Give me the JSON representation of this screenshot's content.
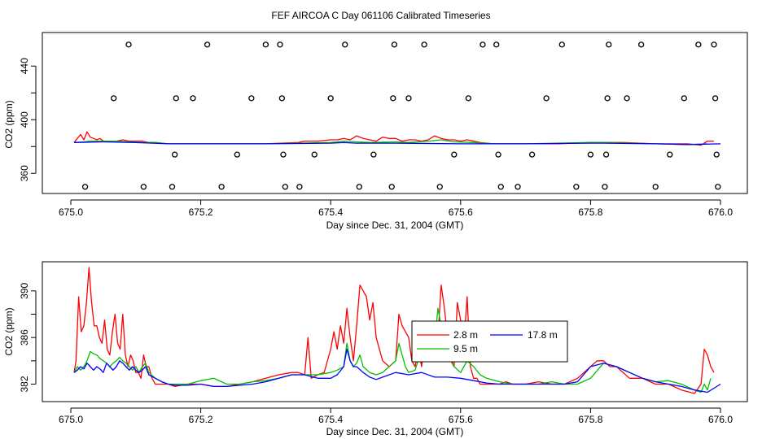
{
  "figure": {
    "title": "FEF AIRCOA C  Day 061106  Calibrated Timeseries"
  },
  "chart_data": [
    {
      "type": "scatter+line",
      "title": "",
      "xlabel": "Day since Dec. 31, 2004 (GMT)",
      "ylabel": "CO2 (ppm)",
      "xlim": [
        675.0,
        676.0
      ],
      "ylim": [
        345,
        465
      ],
      "x_ticks": [
        "675.0",
        "675.2",
        "675.4",
        "675.6",
        "675.8",
        "676.0"
      ],
      "x_tick_values": [
        675.0,
        675.2,
        675.4,
        675.6,
        675.8,
        676.0
      ],
      "y_ticks": [
        "360",
        "400",
        "440"
      ],
      "y_tick_values": [
        360,
        400,
        440
      ],
      "grid": false,
      "reference_points": {
        "x": [
          675.022,
          675.066,
          675.089,
          675.112,
          675.156,
          675.16,
          675.162,
          675.188,
          675.21,
          675.232,
          675.256,
          675.278,
          675.3,
          675.322,
          675.325,
          675.327,
          675.33,
          675.352,
          675.375,
          675.4,
          675.422,
          675.444,
          675.466,
          675.494,
          675.496,
          675.498,
          675.52,
          675.544,
          675.568,
          675.59,
          675.612,
          675.634,
          675.655,
          675.658,
          675.662,
          675.688,
          675.71,
          675.732,
          675.756,
          675.778,
          675.8,
          675.822,
          675.824,
          675.826,
          675.828,
          675.856,
          675.878,
          675.9,
          675.922,
          675.944,
          675.966,
          675.99,
          675.992,
          675.994,
          675.996
        ],
        "y": [
          350,
          416,
          456,
          350,
          350,
          374,
          416,
          416,
          456,
          350,
          374,
          416,
          456,
          456,
          416,
          374,
          350,
          350,
          374,
          416,
          456,
          350,
          374,
          350,
          416,
          456,
          416,
          456,
          350,
          374,
          416,
          456,
          456,
          374,
          350,
          350,
          374,
          416,
          456,
          350,
          374,
          350,
          374,
          416,
          456,
          416,
          456,
          350,
          374,
          416,
          456,
          456,
          416,
          374,
          350
        ]
      },
      "series": [
        {
          "name": "",
          "color": "#ff0000",
          "x": [
            675.005,
            675.01,
            675.015,
            675.02,
            675.025,
            675.03,
            675.035,
            675.04,
            675.045,
            675.05,
            675.06,
            675.07,
            675.08,
            675.09,
            675.1,
            675.11,
            675.12,
            675.13,
            675.15,
            675.2,
            675.25,
            675.3,
            675.35,
            675.36,
            675.38,
            675.4,
            675.41,
            675.42,
            675.43,
            675.44,
            675.45,
            675.46,
            675.47,
            675.48,
            675.49,
            675.5,
            675.51,
            675.52,
            675.53,
            675.54,
            675.55,
            675.56,
            675.57,
            675.58,
            675.59,
            675.6,
            675.61,
            675.62,
            675.63,
            675.65,
            675.7,
            675.75,
            675.8,
            675.82,
            675.85,
            675.9,
            675.95,
            675.97,
            675.98,
            675.99
          ],
          "y": [
            383,
            386,
            389,
            385,
            391,
            387,
            386,
            385,
            386,
            384,
            384,
            384,
            385,
            384,
            384,
            384,
            383,
            383,
            382,
            382,
            382,
            382,
            383,
            384,
            384,
            385,
            385,
            386,
            385,
            388,
            386,
            385,
            384,
            387,
            386,
            386,
            384,
            385,
            385,
            384,
            385,
            388,
            386,
            385,
            385,
            384,
            385,
            384,
            383,
            382,
            382,
            382,
            383,
            383,
            383,
            382,
            382,
            381,
            384,
            384
          ]
        },
        {
          "name": "",
          "color": "#00c000",
          "x": [
            675.005,
            675.02,
            675.03,
            675.04,
            675.05,
            675.07,
            675.09,
            675.11,
            675.13,
            675.15,
            675.2,
            675.3,
            675.35,
            675.4,
            675.42,
            675.44,
            675.46,
            675.5,
            675.52,
            675.55,
            675.57,
            675.59,
            675.62,
            675.65,
            675.7,
            675.8,
            675.82,
            675.9,
            675.95,
            675.98
          ],
          "y": [
            383,
            383.5,
            384,
            384,
            384,
            384,
            383.5,
            383,
            383,
            382,
            382,
            382,
            382.5,
            383,
            384,
            383.5,
            383,
            383.5,
            383,
            384,
            385,
            383.5,
            383,
            382,
            382,
            383,
            383,
            382,
            381.5,
            382
          ]
        },
        {
          "name": "",
          "color": "#0000ff",
          "x": [
            675.005,
            675.05,
            675.1,
            675.15,
            675.2,
            675.3,
            675.4,
            675.42,
            675.44,
            675.5,
            675.6,
            675.7,
            675.8,
            675.82,
            675.9,
            675.95,
            676.0
          ],
          "y": [
            383,
            383.5,
            383,
            382,
            382,
            382,
            382.5,
            383,
            382.5,
            382.5,
            382,
            382,
            382.5,
            382.5,
            382,
            381.5,
            382
          ]
        }
      ]
    },
    {
      "type": "line",
      "title": "",
      "xlabel": "Day since Dec. 31, 2004 (GMT)",
      "ylabel": "CO2 (ppm)",
      "xlim": [
        675.0,
        676.0
      ],
      "ylim": [
        380.5,
        392.5
      ],
      "x_ticks": [
        "675.0",
        "675.2",
        "675.4",
        "675.6",
        "675.8",
        "676.0"
      ],
      "x_tick_values": [
        675.0,
        675.2,
        675.4,
        675.6,
        675.8,
        676.0
      ],
      "y_ticks": [
        "382",
        "386",
        "390"
      ],
      "y_tick_values": [
        382,
        386,
        390
      ],
      "grid": false,
      "legend": {
        "placement": "center",
        "entries": [
          "2.8 m",
          "9.5 m",
          "17.8 m"
        ]
      },
      "series": [
        {
          "name": "2.8 m",
          "color": "#ff0000",
          "x": [
            675.005,
            675.008,
            675.012,
            675.016,
            675.02,
            675.024,
            675.028,
            675.032,
            675.036,
            675.04,
            675.044,
            675.048,
            675.052,
            675.056,
            675.06,
            675.064,
            675.068,
            675.072,
            675.076,
            675.08,
            675.084,
            675.088,
            675.092,
            675.096,
            675.1,
            675.104,
            675.108,
            675.112,
            675.116,
            675.12,
            675.125,
            675.13,
            675.14,
            675.15,
            675.16,
            675.18,
            675.2,
            675.22,
            675.24,
            675.26,
            675.28,
            675.3,
            675.32,
            675.34,
            675.35,
            675.36,
            675.365,
            675.37,
            675.38,
            675.39,
            675.4,
            675.405,
            675.41,
            675.415,
            675.42,
            675.425,
            675.43,
            675.435,
            675.44,
            675.445,
            675.45,
            675.455,
            675.46,
            675.465,
            675.47,
            675.48,
            675.49,
            675.5,
            675.505,
            675.51,
            675.515,
            675.52,
            675.525,
            675.53,
            675.535,
            675.54,
            675.545,
            675.55,
            675.555,
            675.56,
            675.565,
            675.57,
            675.575,
            675.58,
            675.585,
            675.59,
            675.595,
            675.6,
            675.605,
            675.61,
            675.615,
            675.62,
            675.625,
            675.63,
            675.64,
            675.65,
            675.66,
            675.67,
            675.68,
            675.69,
            675.7,
            675.72,
            675.74,
            675.76,
            675.78,
            675.8,
            675.81,
            675.82,
            675.83,
            675.84,
            675.86,
            675.88,
            675.9,
            675.92,
            675.94,
            675.96,
            675.97,
            675.975,
            675.98,
            675.985,
            675.99
          ],
          "y": [
            383,
            384,
            389.5,
            386.5,
            387,
            389,
            392,
            389,
            387,
            387,
            386,
            385.5,
            387.5,
            385,
            384.5,
            386.5,
            388,
            385.5,
            385,
            388,
            384.5,
            383.5,
            384.5,
            384,
            383,
            383,
            382.5,
            384.5,
            383.5,
            383.5,
            382.5,
            382,
            382,
            382,
            381.8,
            382,
            382,
            381.8,
            381.8,
            382,
            382.2,
            382.5,
            382.8,
            383,
            383,
            382.8,
            386,
            382.5,
            382.8,
            383,
            385,
            386.5,
            385,
            387,
            385.5,
            388.5,
            386,
            384,
            387,
            390.5,
            390,
            389.5,
            387.5,
            389,
            386,
            384,
            383.5,
            384,
            388,
            387,
            386.5,
            386,
            384,
            383.5,
            385,
            383.5,
            386.5,
            386,
            384.5,
            385,
            386,
            390.5,
            388.5,
            386,
            384,
            383.5,
            389,
            387.5,
            385.5,
            389.5,
            383.5,
            382.5,
            382.5,
            382,
            382,
            382,
            382,
            382.2,
            382,
            382,
            382,
            382.2,
            382,
            382,
            382.5,
            383.5,
            384,
            384,
            383.5,
            383.5,
            382.5,
            382.5,
            382,
            382,
            381.5,
            381.2,
            382,
            385,
            384.5,
            383.5,
            383
          ]
        },
        {
          "name": "9.5 m",
          "color": "#00c000",
          "x": [
            675.005,
            675.01,
            675.015,
            675.02,
            675.025,
            675.03,
            675.035,
            675.04,
            675.045,
            675.05,
            675.055,
            675.06,
            675.065,
            675.07,
            675.075,
            675.08,
            675.085,
            675.09,
            675.095,
            675.1,
            675.105,
            675.11,
            675.115,
            675.12,
            675.13,
            675.14,
            675.15,
            675.16,
            675.18,
            675.2,
            675.22,
            675.24,
            675.26,
            675.28,
            675.3,
            675.32,
            675.34,
            675.36,
            675.38,
            675.4,
            675.41,
            675.42,
            675.425,
            675.43,
            675.435,
            675.44,
            675.445,
            675.45,
            675.46,
            675.47,
            675.48,
            675.49,
            675.5,
            675.505,
            675.51,
            675.515,
            675.52,
            675.53,
            675.54,
            675.55,
            675.56,
            675.565,
            675.57,
            675.575,
            675.58,
            675.59,
            675.6,
            675.605,
            675.61,
            675.62,
            675.63,
            675.64,
            675.66,
            675.68,
            675.7,
            675.72,
            675.74,
            675.76,
            675.78,
            675.8,
            675.82,
            675.84,
            675.86,
            675.88,
            675.9,
            675.92,
            675.94,
            675.96,
            675.97,
            675.975,
            675.98,
            675.985
          ],
          "y": [
            383,
            383.5,
            383.2,
            383.5,
            384,
            384.8,
            384.6,
            384.5,
            384.2,
            384,
            383.8,
            383.5,
            383.8,
            384,
            384.3,
            384,
            383.8,
            383.5,
            383.2,
            383.5,
            383,
            383.5,
            383.8,
            383,
            382.5,
            382.2,
            382,
            382,
            382,
            382.3,
            382.5,
            382,
            382,
            382.2,
            382.3,
            382.5,
            382.8,
            382.8,
            382.8,
            383,
            383.2,
            383.5,
            385.5,
            384,
            383.5,
            383.8,
            384.5,
            383.5,
            383,
            382.8,
            383,
            383.5,
            384,
            385.5,
            384.5,
            383.5,
            383,
            383.2,
            385,
            384,
            385.5,
            388.5,
            387,
            386,
            385,
            383.5,
            383,
            383.5,
            384,
            383.5,
            382.8,
            382.5,
            382.2,
            382,
            382,
            382,
            382.2,
            382,
            382,
            382.5,
            383.8,
            383.5,
            383,
            382.5,
            382.2,
            382.3,
            382,
            381.5,
            381.3,
            382,
            381.5,
            382.5
          ]
        },
        {
          "name": "17.8 m",
          "color": "#0000ff",
          "x": [
            675.005,
            675.01,
            675.015,
            675.02,
            675.025,
            675.03,
            675.035,
            675.04,
            675.045,
            675.05,
            675.055,
            675.06,
            675.065,
            675.07,
            675.075,
            675.08,
            675.085,
            675.09,
            675.095,
            675.1,
            675.105,
            675.11,
            675.115,
            675.12,
            675.13,
            675.14,
            675.15,
            675.16,
            675.18,
            675.2,
            675.22,
            675.24,
            675.26,
            675.28,
            675.3,
            675.32,
            675.34,
            675.36,
            675.38,
            675.4,
            675.41,
            675.42,
            675.425,
            675.43,
            675.435,
            675.44,
            675.45,
            675.46,
            675.47,
            675.48,
            675.5,
            675.52,
            675.54,
            675.56,
            675.58,
            675.6,
            675.62,
            675.64,
            675.66,
            675.68,
            675.7,
            675.72,
            675.74,
            675.76,
            675.78,
            675.8,
            675.82,
            675.84,
            675.86,
            675.88,
            675.9,
            675.92,
            675.94,
            675.96,
            675.98,
            676.0
          ],
          "y": [
            383,
            383.2,
            383.5,
            383.3,
            383.8,
            383.5,
            383.2,
            383.5,
            383.3,
            383,
            383.8,
            383.5,
            383.2,
            383.5,
            384,
            383.8,
            383.5,
            383.2,
            383.5,
            383.2,
            383,
            383.2,
            383.5,
            382.8,
            382.5,
            382.2,
            382,
            381.9,
            381.9,
            382,
            381.8,
            381.8,
            381.9,
            382,
            382.2,
            382.5,
            382.8,
            382.8,
            382.5,
            382.5,
            382.8,
            383.5,
            385,
            384,
            383.5,
            383.5,
            383,
            382.6,
            382.4,
            382.6,
            383,
            382.8,
            383,
            382.6,
            382.6,
            382.5,
            382.3,
            382.1,
            382,
            382,
            382,
            382,
            382,
            382,
            382.2,
            383.5,
            383.8,
            383.5,
            383,
            382.5,
            382.2,
            382,
            381.8,
            381.5,
            381.3,
            382
          ]
        }
      ]
    }
  ]
}
